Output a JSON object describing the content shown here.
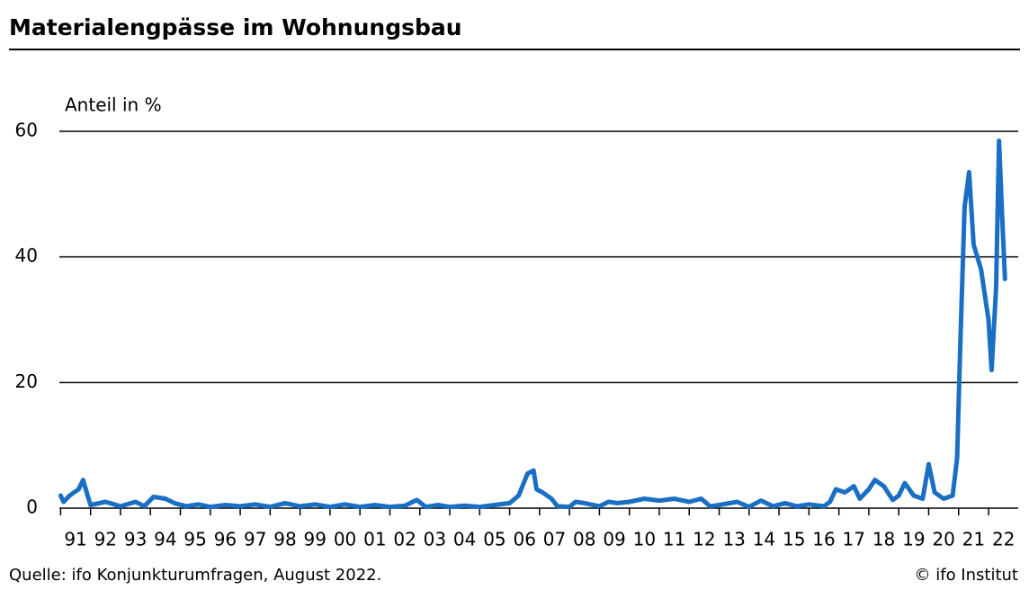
{
  "chart_data": {
    "type": "line",
    "title": "Materialengpässe im Wohnungsbau",
    "y_label": "Anteil in %",
    "source": "Quelle: ifo Konjunkturumfragen, August 2022.",
    "copyright": "© ifo Institut",
    "grid": true,
    "xlim": [
      1991,
      2022.6
    ],
    "ylim": [
      0,
      60
    ],
    "yticks": [
      0,
      20,
      40,
      60
    ],
    "xticks": [
      {
        "value": 1991,
        "label": "91"
      },
      {
        "value": 1992,
        "label": "92"
      },
      {
        "value": 1993,
        "label": "93"
      },
      {
        "value": 1994,
        "label": "94"
      },
      {
        "value": 1995,
        "label": "95"
      },
      {
        "value": 1996,
        "label": "96"
      },
      {
        "value": 1997,
        "label": "97"
      },
      {
        "value": 1998,
        "label": "98"
      },
      {
        "value": 1999,
        "label": "99"
      },
      {
        "value": 2000,
        "label": "00"
      },
      {
        "value": 2001,
        "label": "01"
      },
      {
        "value": 2002,
        "label": "02"
      },
      {
        "value": 2003,
        "label": "03"
      },
      {
        "value": 2004,
        "label": "04"
      },
      {
        "value": 2005,
        "label": "05"
      },
      {
        "value": 2006,
        "label": "06"
      },
      {
        "value": 2007,
        "label": "07"
      },
      {
        "value": 2008,
        "label": "08"
      },
      {
        "value": 2009,
        "label": "09"
      },
      {
        "value": 2010,
        "label": "10"
      },
      {
        "value": 2011,
        "label": "11"
      },
      {
        "value": 2012,
        "label": "12"
      },
      {
        "value": 2013,
        "label": "13"
      },
      {
        "value": 2014,
        "label": "14"
      },
      {
        "value": 2015,
        "label": "15"
      },
      {
        "value": 2016,
        "label": "16"
      },
      {
        "value": 2017,
        "label": "17"
      },
      {
        "value": 2018,
        "label": "18"
      },
      {
        "value": 2019,
        "label": "19"
      },
      {
        "value": 2020,
        "label": "20"
      },
      {
        "value": 2021,
        "label": "21"
      },
      {
        "value": 2022,
        "label": "22"
      }
    ],
    "x": [
      1991.0,
      1991.1,
      1991.3,
      1991.6,
      1991.75,
      1991.9,
      1992.0,
      1992.5,
      1993.0,
      1993.5,
      1993.8,
      1994.1,
      1994.5,
      1994.8,
      1995.2,
      1995.6,
      1996.0,
      1996.5,
      1997.0,
      1997.5,
      1998.0,
      1998.5,
      1999.0,
      1999.5,
      2000.0,
      2000.5,
      2001.0,
      2001.5,
      2002.0,
      2002.5,
      2002.9,
      2003.2,
      2003.6,
      2004.0,
      2004.5,
      2005.0,
      2005.5,
      2006.0,
      2006.3,
      2006.6,
      2006.8,
      2006.9,
      2007.1,
      2007.4,
      2007.6,
      2008.0,
      2008.2,
      2008.5,
      2009.0,
      2009.3,
      2009.6,
      2010.0,
      2010.5,
      2011.0,
      2011.5,
      2012.0,
      2012.4,
      2012.7,
      2013.0,
      2013.6,
      2014.0,
      2014.4,
      2014.8,
      2015.2,
      2015.6,
      2016.0,
      2016.5,
      2016.7,
      2016.9,
      2017.2,
      2017.5,
      2017.7,
      2018.0,
      2018.2,
      2018.5,
      2018.8,
      2019.0,
      2019.2,
      2019.5,
      2019.8,
      2020.0,
      2020.2,
      2020.5,
      2020.8,
      2020.95,
      2021.05,
      2021.2,
      2021.35,
      2021.5,
      2021.75,
      2022.0,
      2022.1,
      2022.25,
      2022.35,
      2022.45,
      2022.55
    ],
    "series": [
      {
        "name": "Anteil",
        "color": "#1a6fc4",
        "values": [
          2,
          1,
          2,
          3,
          4.5,
          2,
          0.5,
          1,
          0.3,
          1,
          0.3,
          1.8,
          1.5,
          0.8,
          0.3,
          0.6,
          0.2,
          0.5,
          0.3,
          0.6,
          0.2,
          0.8,
          0.3,
          0.6,
          0.2,
          0.6,
          0.2,
          0.5,
          0.2,
          0.4,
          1.3,
          0.2,
          0.5,
          0.2,
          0.4,
          0.2,
          0.5,
          0.8,
          2,
          5.5,
          6,
          3,
          2.5,
          1.5,
          0.3,
          0.2,
          1,
          0.8,
          0.3,
          1,
          0.8,
          1,
          1.5,
          1.2,
          1.5,
          1,
          1.5,
          0.3,
          0.5,
          1,
          0.2,
          1.2,
          0.3,
          0.8,
          0.3,
          0.6,
          0.3,
          1,
          3,
          2.5,
          3.5,
          1.5,
          3,
          4.5,
          3.5,
          1.3,
          2,
          4,
          2,
          1.5,
          7,
          2.5,
          1.5,
          2,
          8,
          25,
          48,
          53.5,
          42,
          38,
          30,
          22,
          35,
          58.5,
          47,
          36.5
        ]
      }
    ]
  }
}
